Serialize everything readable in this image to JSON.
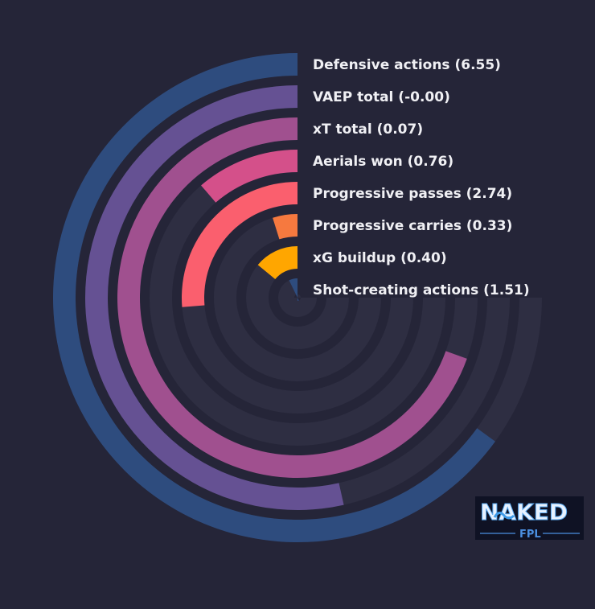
{
  "chart_data": {
    "type": "radial-bar",
    "title": "",
    "start_angle_deg": 90,
    "direction": "counterclockwise",
    "track_sweep_deg": 270,
    "series": [
      {
        "label": "Defensive actions (6.55)",
        "metric": "Defensive actions",
        "value": 6.55,
        "fill_fraction": 0.65,
        "color": "#2e4c7e"
      },
      {
        "label": "VAEP total (-0.00)",
        "metric": "VAEP total",
        "value": -0.0,
        "fill_fraction": 0.535,
        "color": "#655193"
      },
      {
        "label": "xT total (0.07)",
        "metric": "xT total",
        "value": 0.07,
        "fill_fraction": 0.695,
        "color": "#a0508f"
      },
      {
        "label": "Aerials won (0.76)",
        "metric": "Aerials won",
        "value": 0.76,
        "fill_fraction": 0.113,
        "color": "#d4508a"
      },
      {
        "label": "Progressive passes (2.74)",
        "metric": "Progressive passes",
        "value": 2.74,
        "fill_fraction": 0.263,
        "color": "#fa5f6e"
      },
      {
        "label": "Progressive carries (0.33)",
        "metric": "Progressive carries",
        "value": 0.33,
        "fill_fraction": 0.048,
        "color": "#f6793f"
      },
      {
        "label": "xG buildup (0.40)",
        "metric": "xG buildup",
        "value": 0.4,
        "fill_fraction": 0.14,
        "color": "#ffa600"
      },
      {
        "label": "Shot-creating actions (1.51)",
        "metric": "Shot-creating actions",
        "value": 1.51,
        "fill_fraction": 0.072,
        "color": "#2e4c7e"
      }
    ]
  },
  "colors": {
    "background": "#252538",
    "track": "#2e2e42"
  },
  "logo": {
    "text": "NAKED",
    "subtext": "FPL"
  }
}
